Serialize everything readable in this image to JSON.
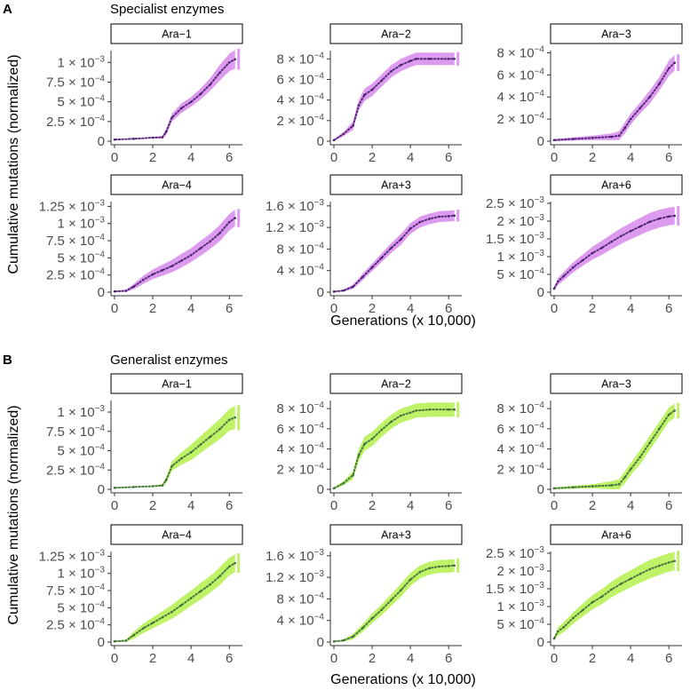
{
  "figure": {
    "ylabel": "Cumulative mutations (normalized)",
    "xlabel": "Generations (x 10,000)"
  },
  "colors": {
    "specialist_band": "#dd9bf0",
    "specialist_line": "#4a2270",
    "generalist_band": "#bff266",
    "generalist_line": "#3f6e3f",
    "strip_fill": "#ffffff",
    "axis": "#333333"
  },
  "sections": [
    {
      "letter": "A",
      "title": "Specialist enzymes",
      "theme": "specialist",
      "ylabel": "Cumulative mutations (normalized)",
      "xlabel": "Generations (x 10,000)"
    },
    {
      "letter": "B",
      "title": "Generalist enzymes",
      "theme": "generalist",
      "ylabel": "Cumulative mutations (normalized)",
      "xlabel": "Generations (x 10,000)"
    }
  ],
  "chart_data": [
    {
      "type": "line",
      "section": "A",
      "series_group": "Specialist enzymes",
      "panel": "Ara−1",
      "xlim": [
        0,
        6.5
      ],
      "ylim": [
        0,
        0.00115
      ],
      "x_ticks": [
        "0",
        "2",
        "4",
        "6"
      ],
      "y_ticks": [
        {
          "value": 0,
          "label": "0"
        },
        {
          "value": 0.00025,
          "label": "2.5 × 10",
          "exp": "−4"
        },
        {
          "value": 0.0005,
          "label": "5 × 10",
          "exp": "−4"
        },
        {
          "value": 0.00075,
          "label": "7.5 × 10",
          "exp": "−4"
        },
        {
          "value": 0.001,
          "label": "1 × 10",
          "exp": "−3"
        }
      ],
      "x": [
        0,
        1,
        2,
        2.5,
        2.7,
        3,
        3.5,
        4,
        4.5,
        5,
        5.5,
        6,
        6.3
      ],
      "y": [
        2e-05,
        3e-05,
        4.5e-05,
        5e-05,
        0.00012,
        0.0003,
        0.00042,
        0.0005,
        0.0006,
        0.00072,
        0.00087,
        0.001,
        0.00104
      ],
      "ci_half": [
        8e-06,
        8e-06,
        1e-05,
        1.5e-05,
        4e-05,
        5e-05,
        6e-05,
        6e-05,
        7e-05,
        8e-05,
        0.0001,
        0.00011,
        0.00012
      ]
    },
    {
      "type": "line",
      "section": "A",
      "series_group": "Specialist enzymes",
      "panel": "Ara−2",
      "xlim": [
        0,
        6.5
      ],
      "ylim": [
        0,
        0.00088
      ],
      "x_ticks": [
        "0",
        "2",
        "4",
        "6"
      ],
      "y_ticks": [
        {
          "value": 0,
          "label": "0"
        },
        {
          "value": 0.0002,
          "label": "2 × 10",
          "exp": "−4"
        },
        {
          "value": 0.0004,
          "label": "4 × 10",
          "exp": "−4"
        },
        {
          "value": 0.0006,
          "label": "6 × 10",
          "exp": "−4"
        },
        {
          "value": 0.0008,
          "label": "8 × 10",
          "exp": "−4"
        }
      ],
      "x": [
        0,
        0.5,
        1,
        1.3,
        1.6,
        2,
        2.5,
        3,
        3.5,
        4,
        4.3,
        5,
        6,
        6.3
      ],
      "y": [
        1e-05,
        7e-05,
        0.00015,
        0.00035,
        0.00045,
        0.0005,
        0.00059,
        0.00068,
        0.00074,
        0.00078,
        0.0008,
        0.0008,
        0.0008,
        0.0008
      ],
      "ci_half": [
        1e-05,
        2e-05,
        4e-05,
        5e-05,
        6e-05,
        6e-05,
        6e-05,
        6e-05,
        6e-05,
        6e-05,
        6e-05,
        6e-05,
        6e-05,
        6e-05
      ]
    },
    {
      "type": "line",
      "section": "A",
      "series_group": "Specialist enzymes",
      "panel": "Ara−3",
      "xlim": [
        0,
        6.5
      ],
      "ylim": [
        0,
        0.00082
      ],
      "x_ticks": [
        "0",
        "2",
        "4",
        "6"
      ],
      "y_ticks": [
        {
          "value": 0,
          "label": "0"
        },
        {
          "value": 0.0002,
          "label": "2 × 10",
          "exp": "−4"
        },
        {
          "value": 0.0004,
          "label": "4 × 10",
          "exp": "−4"
        },
        {
          "value": 0.0006,
          "label": "6 × 10",
          "exp": "−4"
        },
        {
          "value": 0.0008,
          "label": "8 × 10",
          "exp": "−4"
        }
      ],
      "x": [
        0,
        1,
        2,
        3,
        3.4,
        3.7,
        4,
        4.5,
        5,
        5.5,
        6,
        6.3
      ],
      "y": [
        1e-05,
        2e-05,
        3e-05,
        4e-05,
        5e-05,
        0.00012,
        0.0002,
        0.0003,
        0.0004,
        0.00052,
        0.00066,
        0.00071
      ],
      "ci_half": [
        1e-05,
        1.5e-05,
        2e-05,
        3e-05,
        4e-05,
        5e-05,
        5e-05,
        5e-05,
        6e-05,
        6e-05,
        7e-05,
        7e-05
      ]
    },
    {
      "type": "line",
      "section": "A",
      "series_group": "Specialist enzymes",
      "panel": "Ara−4",
      "xlim": [
        0,
        6.5
      ],
      "ylim": [
        0,
        0.00132
      ],
      "x_ticks": [
        "0",
        "2",
        "4",
        "6"
      ],
      "y_ticks": [
        {
          "value": 0,
          "label": "0"
        },
        {
          "value": 0.00025,
          "label": "2.5 × 10",
          "exp": "−4"
        },
        {
          "value": 0.0005,
          "label": "5 × 10",
          "exp": "−4"
        },
        {
          "value": 0.00075,
          "label": "7.5 × 10",
          "exp": "−4"
        },
        {
          "value": 0.001,
          "label": "1 × 10",
          "exp": "−3"
        },
        {
          "value": 0.00125,
          "label": "1.25 × 10",
          "exp": "−3"
        }
      ],
      "x": [
        0,
        0.6,
        1,
        1.5,
        2,
        2.5,
        3,
        3.5,
        4,
        4.5,
        5,
        5.5,
        6,
        6.3
      ],
      "y": [
        1e-05,
        2e-05,
        8e-05,
        0.00018,
        0.00026,
        0.00032,
        0.00038,
        0.00046,
        0.00054,
        0.00064,
        0.00074,
        0.00086,
        0.00102,
        0.00108
      ],
      "ci_half": [
        1e-05,
        1.5e-05,
        4e-05,
        6e-05,
        7e-05,
        8e-05,
        9e-05,
        0.0001,
        0.0001,
        0.00011,
        0.00011,
        0.00012,
        0.00012,
        0.00012
      ]
    },
    {
      "type": "line",
      "section": "A",
      "series_group": "Specialist enzymes",
      "panel": "Ara+3",
      "xlim": [
        0,
        6.5
      ],
      "ylim": [
        0,
        0.00168
      ],
      "x_ticks": [
        "0",
        "2",
        "4",
        "6"
      ],
      "y_ticks": [
        {
          "value": 0,
          "label": "0"
        },
        {
          "value": 0.0004,
          "label": "4 × 10",
          "exp": "−4"
        },
        {
          "value": 0.0008,
          "label": "8 × 10",
          "exp": "−4"
        },
        {
          "value": 0.0012,
          "label": "1.2 × 10",
          "exp": "−3"
        },
        {
          "value": 0.0016,
          "label": "1.6 × 10",
          "exp": "−3"
        }
      ],
      "x": [
        0,
        0.5,
        1,
        1.5,
        2,
        2.5,
        3,
        3.5,
        4,
        4.5,
        5,
        5.5,
        6,
        6.3
      ],
      "y": [
        1e-05,
        3e-05,
        0.0001,
        0.00028,
        0.00046,
        0.00064,
        0.00082,
        0.00098,
        0.00118,
        0.0013,
        0.00136,
        0.0014,
        0.00141,
        0.00142
      ],
      "ci_half": [
        1e-05,
        2e-05,
        4e-05,
        6e-05,
        7e-05,
        8e-05,
        9e-05,
        0.0001,
        0.0001,
        0.0001,
        0.0001,
        0.0001,
        0.0001,
        0.0001
      ]
    },
    {
      "type": "line",
      "section": "A",
      "series_group": "Specialist enzymes",
      "panel": "Ara+6",
      "xlim": [
        0,
        6.5
      ],
      "ylim": [
        0,
        0.00255
      ],
      "x_ticks": [
        "0",
        "2",
        "4",
        "6"
      ],
      "y_ticks": [
        {
          "value": 0,
          "label": "0"
        },
        {
          "value": 0.0005,
          "label": "5 × 10",
          "exp": "−4"
        },
        {
          "value": 0.001,
          "label": "1 × 10",
          "exp": "−3"
        },
        {
          "value": 0.0015,
          "label": "1.5 × 10",
          "exp": "−3"
        },
        {
          "value": 0.002,
          "label": "2 × 10",
          "exp": "−3"
        },
        {
          "value": 0.0025,
          "label": "2.5 × 10",
          "exp": "−3"
        }
      ],
      "x": [
        0,
        0.2,
        0.5,
        1,
        1.5,
        2,
        2.5,
        3,
        3.5,
        4,
        4.5,
        5,
        5.5,
        6,
        6.3
      ],
      "y": [
        0.0001,
        0.0003,
        0.00045,
        0.0007,
        0.0009,
        0.0011,
        0.00125,
        0.00142,
        0.00158,
        0.00172,
        0.00185,
        0.00198,
        0.00207,
        0.00213,
        0.00215
      ],
      "ci_half": [
        5e-05,
        0.0001,
        0.00012,
        0.00014,
        0.00016,
        0.00018,
        0.0002,
        0.00021,
        0.00022,
        0.00023,
        0.00024,
        0.00025,
        0.00025,
        0.00025,
        0.00025
      ]
    },
    {
      "type": "line",
      "section": "B",
      "series_group": "Generalist enzymes",
      "panel": "Ara−1",
      "xlim": [
        0,
        6.5
      ],
      "ylim": [
        0,
        0.00115
      ],
      "x_ticks": [
        "0",
        "2",
        "4",
        "6"
      ],
      "y_ticks": [
        {
          "value": 0,
          "label": "0"
        },
        {
          "value": 0.00025,
          "label": "2.5 × 10",
          "exp": "−4"
        },
        {
          "value": 0.0005,
          "label": "5 × 10",
          "exp": "−4"
        },
        {
          "value": 0.00075,
          "label": "7.5 × 10",
          "exp": "−4"
        },
        {
          "value": 0.001,
          "label": "1 × 10",
          "exp": "−3"
        }
      ],
      "x": [
        0,
        1,
        2,
        2.5,
        2.7,
        3,
        3.5,
        4,
        4.5,
        5,
        5.5,
        6,
        6.3
      ],
      "y": [
        2e-05,
        3e-05,
        4e-05,
        5e-05,
        0.00012,
        0.0003,
        0.0004,
        0.00048,
        0.00058,
        0.00068,
        0.00078,
        0.0009,
        0.00093
      ],
      "ci_half": [
        8e-06,
        8e-06,
        1e-05,
        1.5e-05,
        4e-05,
        6e-05,
        8e-05,
        0.0001,
        0.00011,
        0.00012,
        0.00013,
        0.00014,
        0.00015
      ]
    },
    {
      "type": "line",
      "section": "B",
      "series_group": "Generalist enzymes",
      "panel": "Ara−2",
      "xlim": [
        0,
        6.5
      ],
      "ylim": [
        0,
        0.00088
      ],
      "x_ticks": [
        "0",
        "2",
        "4",
        "6"
      ],
      "y_ticks": [
        {
          "value": 0,
          "label": "0"
        },
        {
          "value": 0.0002,
          "label": "2 × 10",
          "exp": "−4"
        },
        {
          "value": 0.0004,
          "label": "4 × 10",
          "exp": "−4"
        },
        {
          "value": 0.0006,
          "label": "6 × 10",
          "exp": "−4"
        },
        {
          "value": 0.0008,
          "label": "8 × 10",
          "exp": "−4"
        }
      ],
      "x": [
        0,
        0.5,
        1,
        1.3,
        1.6,
        2,
        2.5,
        3,
        3.5,
        4,
        4.3,
        5,
        6,
        6.3
      ],
      "y": [
        1e-05,
        6e-05,
        0.00014,
        0.00034,
        0.00045,
        0.0005,
        0.00059,
        0.00067,
        0.00073,
        0.00076,
        0.00078,
        0.00079,
        0.00079,
        0.00079
      ],
      "ci_half": [
        1e-05,
        2e-05,
        4e-05,
        6e-05,
        7e-05,
        7e-05,
        7e-05,
        7e-05,
        7e-05,
        7e-05,
        7e-05,
        7e-05,
        7e-05,
        7e-05
      ]
    },
    {
      "type": "line",
      "section": "B",
      "series_group": "Generalist enzymes",
      "panel": "Ara−3",
      "xlim": [
        0,
        6.5
      ],
      "ylim": [
        0,
        0.00088
      ],
      "x_ticks": [
        "0",
        "2",
        "4",
        "6"
      ],
      "y_ticks": [
        {
          "value": 0,
          "label": "0"
        },
        {
          "value": 0.0002,
          "label": "2 × 10",
          "exp": "−4"
        },
        {
          "value": 0.0004,
          "label": "4 × 10",
          "exp": "−4"
        },
        {
          "value": 0.0006,
          "label": "6 × 10",
          "exp": "−4"
        },
        {
          "value": 0.0008,
          "label": "8 × 10",
          "exp": "−4"
        }
      ],
      "x": [
        0,
        1,
        2,
        3,
        3.4,
        3.7,
        4,
        4.5,
        5,
        5.5,
        6,
        6.3
      ],
      "y": [
        1e-05,
        2e-05,
        3e-05,
        4e-05,
        5e-05,
        0.00012,
        0.0002,
        0.00032,
        0.00046,
        0.0006,
        0.00074,
        0.00078
      ],
      "ci_half": [
        1e-05,
        1.5e-05,
        2e-05,
        4e-05,
        5e-05,
        6e-05,
        6e-05,
        7e-05,
        7e-05,
        7e-05,
        7e-05,
        7e-05
      ]
    },
    {
      "type": "line",
      "section": "B",
      "series_group": "Generalist enzymes",
      "panel": "Ara−4",
      "xlim": [
        0,
        6.5
      ],
      "ylim": [
        0,
        0.00132
      ],
      "x_ticks": [
        "0",
        "2",
        "4",
        "6"
      ],
      "y_ticks": [
        {
          "value": 0,
          "label": "0"
        },
        {
          "value": 0.00025,
          "label": "2.5 × 10",
          "exp": "−4"
        },
        {
          "value": 0.0005,
          "label": "5 × 10",
          "exp": "−4"
        },
        {
          "value": 0.00075,
          "label": "7.5 × 10",
          "exp": "−4"
        },
        {
          "value": 0.001,
          "label": "1 × 10",
          "exp": "−3"
        },
        {
          "value": 0.00125,
          "label": "1.25 × 10",
          "exp": "−3"
        }
      ],
      "x": [
        0,
        0.6,
        1,
        1.5,
        2,
        2.5,
        3,
        3.5,
        4,
        4.5,
        5,
        5.5,
        6,
        6.3
      ],
      "y": [
        1e-05,
        2e-05,
        0.0001,
        0.0002,
        0.00028,
        0.00036,
        0.00044,
        0.00054,
        0.00064,
        0.00074,
        0.00084,
        0.00096,
        0.0011,
        0.00115
      ],
      "ci_half": [
        1e-05,
        1.5e-05,
        5e-05,
        7e-05,
        8e-05,
        9e-05,
        0.0001,
        0.00011,
        0.00011,
        0.00012,
        0.00012,
        0.00013,
        0.00013,
        0.00013
      ]
    },
    {
      "type": "line",
      "section": "B",
      "series_group": "Generalist enzymes",
      "panel": "Ara+3",
      "xlim": [
        0,
        6.5
      ],
      "ylim": [
        0,
        0.00168
      ],
      "x_ticks": [
        "0",
        "2",
        "4",
        "6"
      ],
      "y_ticks": [
        {
          "value": 0,
          "label": "0"
        },
        {
          "value": 0.0004,
          "label": "4 × 10",
          "exp": "−4"
        },
        {
          "value": 0.0008,
          "label": "8 × 10",
          "exp": "−4"
        },
        {
          "value": 0.0012,
          "label": "1.2 × 10",
          "exp": "−3"
        },
        {
          "value": 0.0016,
          "label": "1.6 × 10",
          "exp": "−3"
        }
      ],
      "x": [
        0,
        0.5,
        1,
        1.5,
        2,
        2.5,
        3,
        3.5,
        4,
        4.5,
        5,
        5.5,
        6,
        6.3
      ],
      "y": [
        1e-05,
        3e-05,
        0.0001,
        0.00026,
        0.00044,
        0.0006,
        0.00078,
        0.00096,
        0.00116,
        0.0013,
        0.00137,
        0.0014,
        0.00141,
        0.00142
      ],
      "ci_half": [
        1e-05,
        2e-05,
        5e-05,
        7e-05,
        9e-05,
        0.0001,
        0.00011,
        0.00012,
        0.00012,
        0.00012,
        0.00012,
        0.00012,
        0.00012,
        0.00012
      ]
    },
    {
      "type": "line",
      "section": "B",
      "series_group": "Generalist enzymes",
      "panel": "Ara+6",
      "xlim": [
        0,
        6.5
      ],
      "ylim": [
        0,
        0.00255
      ],
      "x_ticks": [
        "0",
        "2",
        "4",
        "6"
      ],
      "y_ticks": [
        {
          "value": 0,
          "label": "0"
        },
        {
          "value": 0.0005,
          "label": "5 × 10",
          "exp": "−4"
        },
        {
          "value": 0.001,
          "label": "1 × 10",
          "exp": "−3"
        },
        {
          "value": 0.0015,
          "label": "1.5 × 10",
          "exp": "−3"
        },
        {
          "value": 0.002,
          "label": "2 × 10",
          "exp": "−3"
        },
        {
          "value": 0.0025,
          "label": "2.5 × 10",
          "exp": "−3"
        }
      ],
      "x": [
        0,
        0.2,
        0.5,
        1,
        1.5,
        2,
        2.5,
        3,
        3.5,
        4,
        4.5,
        5,
        5.5,
        6,
        6.3
      ],
      "y": [
        0.0001,
        0.0003,
        0.00042,
        0.00068,
        0.0009,
        0.00112,
        0.00128,
        0.00148,
        0.00164,
        0.00178,
        0.00192,
        0.00205,
        0.00215,
        0.00224,
        0.00228
      ],
      "ci_half": [
        5e-05,
        0.00012,
        0.00014,
        0.00016,
        0.00018,
        0.0002,
        0.00021,
        0.00022,
        0.00023,
        0.00024,
        0.00025,
        0.00026,
        0.00026,
        0.00026,
        0.00026
      ]
    }
  ]
}
